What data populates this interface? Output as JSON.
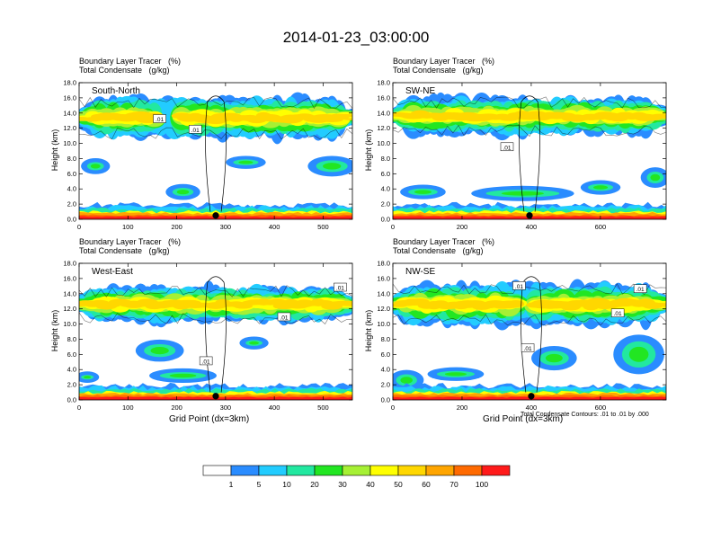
{
  "page_title": "2014-01-23_03:00:00",
  "chart_data": [
    {
      "type": "heatmap",
      "panel_label": "South-North",
      "title_line1": "Boundary Layer Tracer   (%)",
      "title_line2": "Total Condensate   (g/kg)",
      "ylabel": "Height (km)",
      "xlabel": "",
      "xlim": [
        0,
        560
      ],
      "ylim": [
        0,
        18
      ],
      "xticks": [
        "0",
        "100",
        "200",
        "300",
        "400",
        "500"
      ],
      "yticks": [
        "0.0",
        "2.0",
        "4.0",
        "6.0",
        "8.0",
        "10.0",
        "12.0",
        "14.0",
        "16.0",
        "18.0"
      ],
      "marker_x": 280,
      "contour_labels": [
        {
          "text": ".01",
          "x": 165,
          "y": 13.2
        },
        {
          "text": ".01",
          "x": 238,
          "y": 11.8
        }
      ]
    },
    {
      "type": "heatmap",
      "panel_label": "SW-NE",
      "title_line1": "Boundary Layer Tracer   (%)",
      "title_line2": "Total Condensate   (g/kg)",
      "ylabel": "Height (km)",
      "xlabel": "",
      "xlim": [
        0,
        790
      ],
      "ylim": [
        0,
        18
      ],
      "xticks": [
        "0",
        "200",
        "400",
        "600"
      ],
      "yticks": [
        "0.0",
        "2.0",
        "4.0",
        "6.0",
        "8.0",
        "10.0",
        "12.0",
        "14.0",
        "16.0",
        "18.0"
      ],
      "marker_x": 395,
      "contour_labels": [
        {
          "text": ".01",
          "x": 330,
          "y": 9.5
        }
      ]
    },
    {
      "type": "heatmap",
      "panel_label": "West-East",
      "title_line1": "Boundary Layer Tracer   (%)",
      "title_line2": "Total Condensate   (g/kg)",
      "ylabel": "Height (km)",
      "xlabel": "Grid Point (dx=3km)",
      "xlim": [
        0,
        560
      ],
      "ylim": [
        0,
        18
      ],
      "xticks": [
        "0",
        "100",
        "200",
        "300",
        "400",
        "500"
      ],
      "yticks": [
        "0.0",
        "2.0",
        "4.0",
        "6.0",
        "8.0",
        "10.0",
        "12.0",
        "14.0",
        "16.0",
        "18.0"
      ],
      "marker_x": 280,
      "contour_labels": [
        {
          "text": ".01",
          "x": 535,
          "y": 14.8
        },
        {
          "text": ".01",
          "x": 420,
          "y": 10.9
        },
        {
          "text": ".01",
          "x": 260,
          "y": 5.1
        }
      ]
    },
    {
      "type": "heatmap",
      "panel_label": "NW-SE",
      "title_line1": "Boundary Layer Tracer   (%)",
      "title_line2": "Total Condensate   (g/kg)",
      "ylabel": "Height (km)",
      "xlabel": "Grid Point (dx=3km)",
      "xlim": [
        0,
        790
      ],
      "ylim": [
        0,
        18
      ],
      "xticks": [
        "0",
        "200",
        "400",
        "600"
      ],
      "yticks": [
        "0.0",
        "2.0",
        "4.0",
        "6.0",
        "8.0",
        "10.0",
        "12.0",
        "14.0",
        "16.0",
        "18.0"
      ],
      "marker_x": 400,
      "contour_labels": [
        {
          "text": ".01",
          "x": 365,
          "y": 15.0
        },
        {
          "text": ".01",
          "x": 650,
          "y": 11.4
        },
        {
          "text": ".01",
          "x": 715,
          "y": 14.6
        },
        {
          "text": ".01",
          "x": 390,
          "y": 6.8
        }
      ]
    }
  ],
  "footnote": "Total Condensate Contours: .01 to .01 by .000",
  "colorbar": {
    "colors": [
      "#ffffff",
      "#2a8cff",
      "#22ccff",
      "#22e8a0",
      "#22e622",
      "#a6f034",
      "#ffff00",
      "#ffd700",
      "#ffa500",
      "#ff6a00",
      "#ff1a1a"
    ],
    "labels": [
      "1",
      "5",
      "10",
      "20",
      "30",
      "40",
      "50",
      "60",
      "70",
      "100"
    ]
  }
}
